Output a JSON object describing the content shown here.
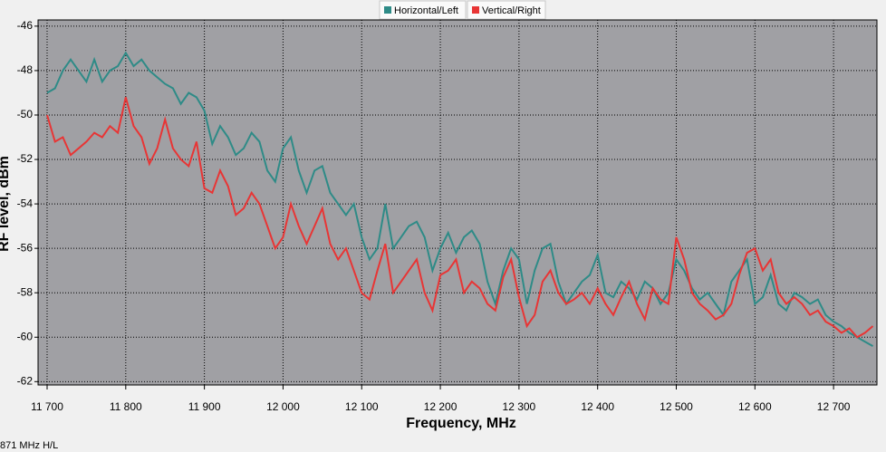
{
  "chart_data": {
    "type": "line",
    "x_label": "Frequency, MHz",
    "y_label": "RF level, dBm",
    "status_text": "871 MHz H/L",
    "legend": "top",
    "grid": true,
    "xlim": [
      11700,
      12754
    ],
    "ylim": [
      -62.15,
      -45.72
    ],
    "xticks": [
      {
        "value": 11700,
        "label": "11 700"
      },
      {
        "value": 11800,
        "label": "11 800"
      },
      {
        "value": 11900,
        "label": "11 900"
      },
      {
        "value": 12000,
        "label": "12 000"
      },
      {
        "value": 12100,
        "label": "12 100"
      },
      {
        "value": 12200,
        "label": "12 200"
      },
      {
        "value": 12300,
        "label": "12 300"
      },
      {
        "value": 12400,
        "label": "12 400"
      },
      {
        "value": 12500,
        "label": "12 500"
      },
      {
        "value": 12600,
        "label": "12 600"
      },
      {
        "value": 12700,
        "label": "12 700"
      }
    ],
    "yticks": [
      -46,
      -48,
      -50,
      -52,
      -54,
      -56,
      -58,
      -60,
      -62
    ],
    "x": [
      11700,
      11710,
      11720,
      11730,
      11740,
      11750,
      11760,
      11770,
      11780,
      11790,
      11800,
      11810,
      11820,
      11830,
      11840,
      11850,
      11860,
      11870,
      11880,
      11890,
      11900,
      11910,
      11920,
      11930,
      11940,
      11950,
      11960,
      11970,
      11980,
      11990,
      12000,
      12010,
      12020,
      12030,
      12040,
      12050,
      12060,
      12070,
      12080,
      12090,
      12100,
      12110,
      12120,
      12130,
      12140,
      12150,
      12160,
      12170,
      12180,
      12190,
      12200,
      12210,
      12220,
      12230,
      12240,
      12250,
      12260,
      12270,
      12280,
      12290,
      12300,
      12310,
      12320,
      12330,
      12340,
      12350,
      12360,
      12370,
      12380,
      12390,
      12400,
      12410,
      12420,
      12430,
      12440,
      12450,
      12460,
      12470,
      12480,
      12490,
      12500,
      12510,
      12520,
      12530,
      12540,
      12550,
      12560,
      12570,
      12580,
      12590,
      12600,
      12610,
      12620,
      12630,
      12640,
      12650,
      12660,
      12670,
      12680,
      12690,
      12700,
      12710,
      12720,
      12730,
      12740,
      12750
    ],
    "series": [
      {
        "name": "Horizontal/Left",
        "color": "#2e8b87",
        "values": [
          -49,
          -48.8,
          -48,
          -47.5,
          -48,
          -48.5,
          -47.5,
          -48.5,
          -48,
          -47.8,
          -47.2,
          -47.8,
          -47.5,
          -48,
          -48.3,
          -48.6,
          -48.8,
          -49.5,
          -49,
          -49.2,
          -49.8,
          -51.3,
          -50.5,
          -51,
          -51.8,
          -51.5,
          -50.8,
          -51.2,
          -52.5,
          -53,
          -51.5,
          -51,
          -52.5,
          -53.5,
          -52.5,
          -52.3,
          -53.5,
          -54,
          -54.5,
          -54,
          -55.5,
          -56.5,
          -56,
          -54,
          -56,
          -55.5,
          -55,
          -54.8,
          -55.5,
          -57,
          -56,
          -55.3,
          -56.2,
          -55.5,
          -55.2,
          -55.8,
          -57.5,
          -58.5,
          -57,
          -56,
          -56.5,
          -58.5,
          -57,
          -56,
          -55.8,
          -57.5,
          -58.5,
          -58,
          -57.5,
          -57.2,
          -56.3,
          -58,
          -58.2,
          -57.5,
          -57.8,
          -58.3,
          -57.5,
          -57.8,
          -58.5,
          -58,
          -56.5,
          -57,
          -57.8,
          -58.3,
          -58,
          -58.5,
          -59,
          -57.5,
          -57,
          -56.5,
          -58.5,
          -58.2,
          -57.2,
          -58.5,
          -58.8,
          -58,
          -58.2,
          -58.5,
          -58.3,
          -59,
          -59.3,
          -59.5,
          -59.8,
          -60,
          -60.2,
          -60.4
        ]
      },
      {
        "name": "Vertical/Right",
        "color": "#e83535",
        "values": [
          -50,
          -51.2,
          -51,
          -51.8,
          -51.5,
          -51.2,
          -50.8,
          -51,
          -50.5,
          -50.8,
          -49.2,
          -50.5,
          -51,
          -52.2,
          -51.5,
          -50.2,
          -51.5,
          -52,
          -52.3,
          -51.2,
          -53.3,
          -53.5,
          -52.5,
          -53.2,
          -54.5,
          -54.2,
          -53.5,
          -54,
          -55,
          -56,
          -55.5,
          -54,
          -55,
          -55.8,
          -55,
          -54.2,
          -55.8,
          -56.5,
          -56,
          -57,
          -58,
          -58.3,
          -57,
          -55.8,
          -58,
          -57.5,
          -57,
          -56.5,
          -58,
          -58.8,
          -57.2,
          -57,
          -56.5,
          -58,
          -57.5,
          -57.8,
          -58.5,
          -58.8,
          -57.3,
          -56.5,
          -58.2,
          -59.5,
          -59,
          -57.5,
          -57,
          -58,
          -58.5,
          -58.3,
          -58,
          -58.5,
          -57.8,
          -58.5,
          -59,
          -58.2,
          -57.5,
          -58.5,
          -59.2,
          -57.8,
          -58.3,
          -58.5,
          -55.5,
          -56.5,
          -58,
          -58.5,
          -58.8,
          -59.2,
          -59,
          -58.5,
          -57.2,
          -56.2,
          -56,
          -57,
          -56.5,
          -58,
          -58.5,
          -58.2,
          -58.5,
          -59,
          -58.8,
          -59.3,
          -59.5,
          -59.8,
          -59.6,
          -60,
          -59.8,
          -59.5
        ]
      }
    ]
  }
}
